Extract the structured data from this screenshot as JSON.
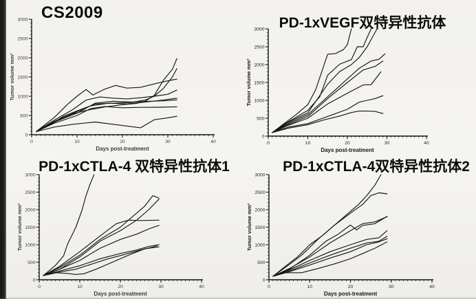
{
  "page": {
    "background_color": "#f2f1ed",
    "film_strip_color": "#1b1b1b",
    "line_color": "#141414",
    "axis_color": "#141414"
  },
  "chart_data": [
    {
      "type": "line",
      "title": "CS2009",
      "xlabel": "Days post-treatment",
      "ylabel": "Tumor volume mm³",
      "xlim": [
        0,
        40
      ],
      "ylim": [
        0,
        3000
      ],
      "xticks": [
        0,
        10,
        20,
        30,
        40
      ],
      "yticks": [
        0,
        500,
        1000,
        1500,
        2000,
        2500,
        3000
      ],
      "x_minor_step": 1,
      "y_minor_step": 100,
      "grid": false,
      "legend": "none",
      "series": [
        {
          "x": [
            1,
            6,
            9,
            12,
            16,
            20,
            23,
            25,
            27,
            29,
            31,
            32
          ],
          "y": [
            80,
            390,
            540,
            630,
            720,
            780,
            810,
            870,
            1020,
            1410,
            1700,
            1980
          ]
        },
        {
          "x": [
            1,
            5,
            10,
            14,
            18,
            22,
            25,
            27,
            29,
            31,
            32
          ],
          "y": [
            80,
            350,
            600,
            800,
            820,
            840,
            900,
            1000,
            1200,
            1500,
            1720
          ]
        },
        {
          "x": [
            1,
            5,
            8,
            10,
            12,
            13.5,
            16,
            18.5,
            21,
            24,
            27,
            30,
            32
          ],
          "y": [
            80,
            450,
            800,
            1000,
            1175,
            1030,
            1180,
            1280,
            1210,
            1230,
            1320,
            1400,
            1445
          ]
        },
        {
          "x": [
            1,
            5,
            9,
            12,
            15,
            18,
            21,
            24,
            27,
            30,
            32
          ],
          "y": [
            80,
            380,
            650,
            900,
            980,
            950,
            930,
            960,
            1000,
            1050,
            1160
          ]
        },
        {
          "x": [
            1,
            5,
            10,
            14,
            18,
            22,
            26,
            29,
            32
          ],
          "y": [
            80,
            330,
            560,
            820,
            870,
            850,
            870,
            880,
            905
          ]
        },
        {
          "x": [
            1,
            5,
            10,
            13,
            16,
            20,
            24,
            28,
            32
          ],
          "y": [
            80,
            300,
            500,
            680,
            730,
            700,
            710,
            715,
            725
          ]
        },
        {
          "x": [
            1,
            5,
            9,
            14,
            20,
            24,
            27,
            30,
            32
          ],
          "y": [
            80,
            200,
            270,
            330,
            240,
            180,
            390,
            440,
            480
          ]
        },
        {
          "x": [
            1,
            4,
            7,
            10,
            13,
            17,
            21,
            25,
            29,
            32
          ],
          "y": [
            80,
            250,
            480,
            620,
            750,
            820,
            800,
            850,
            900,
            950
          ]
        }
      ]
    },
    {
      "type": "line",
      "title": "PD-1xVEGF双特异性抗体",
      "xlabel": "Days post-treatment",
      "ylabel": "Tumor volume mm³",
      "xlim": [
        0,
        40
      ],
      "ylim": [
        0,
        3000
      ],
      "xticks": [
        0,
        10,
        20,
        30,
        40
      ],
      "yticks": [
        0,
        500,
        1000,
        1500,
        2000,
        2500,
        3000
      ],
      "x_minor_step": 1,
      "y_minor_step": 100,
      "grid": false,
      "legend": "none",
      "series": [
        {
          "x": [
            1,
            4,
            7,
            10,
            12,
            15,
            17,
            19,
            20,
            21
          ],
          "y": [
            100,
            350,
            600,
            880,
            1300,
            2290,
            2310,
            2420,
            2560,
            3000
          ]
        },
        {
          "x": [
            1,
            5,
            10,
            13,
            15,
            18,
            21,
            22.5,
            24,
            25,
            26
          ],
          "y": [
            100,
            400,
            720,
            1100,
            1700,
            2010,
            2140,
            2500,
            2500,
            2760,
            3000
          ]
        },
        {
          "x": [
            1,
            5,
            10,
            15,
            18,
            21,
            23,
            25,
            26,
            27.5
          ],
          "y": [
            100,
            380,
            650,
            1450,
            1800,
            2000,
            2200,
            2500,
            2700,
            3000
          ]
        },
        {
          "x": [
            1,
            5,
            10,
            14,
            17,
            20,
            23,
            26,
            28,
            29.5
          ],
          "y": [
            100,
            350,
            600,
            1000,
            1300,
            1600,
            1900,
            2100,
            2150,
            2300
          ]
        },
        {
          "x": [
            1,
            5,
            10,
            15,
            20,
            24,
            27,
            29
          ],
          "y": [
            100,
            320,
            550,
            1050,
            1500,
            1850,
            1950,
            2100
          ]
        },
        {
          "x": [
            1,
            5,
            10,
            15,
            20,
            24,
            26,
            28.5
          ],
          "y": [
            100,
            300,
            500,
            900,
            1200,
            1430,
            1440,
            1800
          ]
        },
        {
          "x": [
            1,
            5,
            10,
            15,
            20,
            23,
            25,
            27,
            29
          ],
          "y": [
            100,
            250,
            350,
            550,
            750,
            950,
            1000,
            1050,
            1130
          ]
        },
        {
          "x": [
            1,
            5,
            10,
            14,
            18,
            21,
            23,
            25,
            27,
            29
          ],
          "y": [
            100,
            220,
            320,
            450,
            560,
            660,
            700,
            700,
            690,
            630
          ]
        }
      ]
    },
    {
      "type": "line",
      "title": "PD-1xCTLA-4 双特异性抗体1",
      "xlabel": "Days post-treatment",
      "ylabel": "Tumor volume mm³",
      "xlim": [
        0,
        40
      ],
      "ylim": [
        0,
        3000
      ],
      "xticks": [
        0,
        10,
        20,
        30,
        40
      ],
      "yticks": [
        0,
        500,
        1000,
        1500,
        2000,
        2500,
        3000
      ],
      "x_minor_step": 1,
      "y_minor_step": 100,
      "grid": false,
      "legend": "none",
      "series": [
        {
          "x": [
            1,
            4,
            6,
            7,
            9,
            10.5,
            11.5,
            12.5,
            13.5
          ],
          "y": [
            120,
            410,
            680,
            1020,
            1490,
            1970,
            2380,
            2720,
            3000
          ]
        },
        {
          "x": [
            1,
            5,
            10,
            15,
            20,
            23,
            26,
            28,
            29.5
          ],
          "y": [
            120,
            350,
            700,
            1150,
            1500,
            1800,
            2100,
            2400,
            2330
          ]
        },
        {
          "x": [
            1,
            5,
            10,
            15,
            20,
            24,
            27,
            29.5
          ],
          "y": [
            120,
            300,
            650,
            1100,
            1400,
            1700,
            2000,
            2300
          ]
        },
        {
          "x": [
            1,
            5,
            10,
            15,
            19,
            22,
            25,
            29.5
          ],
          "y": [
            120,
            380,
            800,
            1250,
            1600,
            1700,
            1690,
            1700
          ]
        },
        {
          "x": [
            1,
            5,
            10,
            15,
            20,
            24,
            27,
            29.5
          ],
          "y": [
            120,
            300,
            550,
            900,
            1150,
            1300,
            1450,
            1550
          ]
        },
        {
          "x": [
            1,
            5,
            10,
            15,
            20,
            24,
            27,
            29.5
          ],
          "y": [
            120,
            250,
            400,
            600,
            750,
            850,
            950,
            1000
          ]
        },
        {
          "x": [
            1,
            4,
            7,
            9,
            11,
            14,
            17,
            20,
            23,
            26,
            29.5
          ],
          "y": [
            120,
            200,
            180,
            150,
            170,
            300,
            450,
            600,
            750,
            880,
            940
          ]
        },
        {
          "x": [
            1,
            5,
            9,
            13,
            17,
            21,
            25,
            29
          ],
          "y": [
            120,
            220,
            300,
            450,
            600,
            720,
            850,
            960
          ]
        }
      ]
    },
    {
      "type": "line",
      "title": "PD-1xCTLA-4双特异性抗体2",
      "xlabel": "Days post-treatment",
      "ylabel": "Tumor volume mm³",
      "xlim": [
        0,
        40
      ],
      "ylim": [
        0,
        3000
      ],
      "xticks": [
        0,
        10,
        20,
        30,
        40
      ],
      "yticks": [
        0,
        500,
        1000,
        1500,
        2000,
        2500,
        3000
      ],
      "x_minor_step": 1,
      "y_minor_step": 100,
      "grid": false,
      "legend": "none",
      "series": [
        {
          "x": [
            1,
            4,
            7,
            10,
            13,
            16,
            19,
            22,
            24,
            26,
            27.5
          ],
          "y": [
            100,
            380,
            650,
            1000,
            1250,
            1550,
            1850,
            2150,
            2400,
            2700,
            3000
          ]
        },
        {
          "x": [
            1,
            4,
            8,
            12,
            16,
            20,
            23,
            25,
            27,
            29
          ],
          "y": [
            100,
            350,
            700,
            1150,
            1550,
            1900,
            2150,
            2400,
            2480,
            2450
          ]
        },
        {
          "x": [
            1,
            5,
            10,
            14,
            17,
            20,
            21.5,
            23,
            26,
            29
          ],
          "y": [
            100,
            300,
            700,
            1100,
            1300,
            1560,
            1420,
            1550,
            1600,
            1810
          ]
        },
        {
          "x": [
            1,
            5,
            10,
            15,
            20,
            23,
            26,
            29
          ],
          "y": [
            100,
            320,
            650,
            1050,
            1400,
            1600,
            1650,
            1800
          ]
        },
        {
          "x": [
            1,
            5,
            10,
            15,
            20,
            24,
            27,
            29
          ],
          "y": [
            100,
            280,
            550,
            800,
            1000,
            1150,
            1200,
            1400
          ]
        },
        {
          "x": [
            1,
            5,
            10,
            15,
            20,
            24,
            27,
            29
          ],
          "y": [
            100,
            250,
            480,
            700,
            900,
            1050,
            1100,
            1240
          ]
        },
        {
          "x": [
            1,
            5,
            10,
            15,
            20,
            24,
            27,
            29
          ],
          "y": [
            100,
            230,
            420,
            620,
            800,
            1000,
            1080,
            1170
          ]
        },
        {
          "x": [
            1,
            4,
            8,
            12,
            16,
            20,
            23,
            26,
            29
          ],
          "y": [
            100,
            200,
            200,
            320,
            450,
            600,
            750,
            900,
            1080
          ]
        }
      ]
    }
  ]
}
